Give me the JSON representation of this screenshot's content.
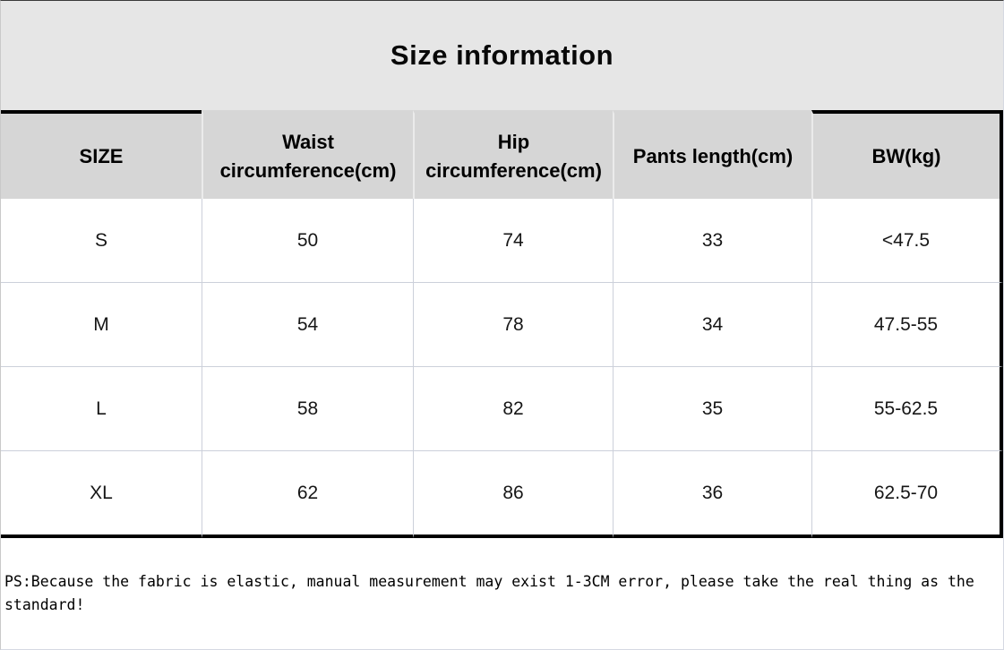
{
  "header": {
    "title": "Size information"
  },
  "table": {
    "columns": [
      {
        "label": "SIZE"
      },
      {
        "label": "Waist\ncircumference(cm)"
      },
      {
        "label": "Hip\ncircumference(cm)"
      },
      {
        "label": "Pants length(cm)"
      },
      {
        "label": "BW(kg)"
      }
    ],
    "rows": [
      {
        "size": "S",
        "waist": "50",
        "hip": "74",
        "pants_length": "33",
        "bw": "<47.5"
      },
      {
        "size": "M",
        "waist": "54",
        "hip": "78",
        "pants_length": "34",
        "bw": "47.5-55"
      },
      {
        "size": "L",
        "waist": "58",
        "hip": "82",
        "pants_length": "35",
        "bw": "55-62.5"
      },
      {
        "size": "XL",
        "waist": "62",
        "hip": "86",
        "pants_length": "36",
        "bw": "62.5-70"
      }
    ]
  },
  "footnote": {
    "text": "PS:Because the fabric is elastic, manual measurement may exist 1-3CM error, please take the real thing as the standard!"
  },
  "colors": {
    "title_band_bg": "#e6e6e6",
    "header_row_bg": "#d6d6d6",
    "thick_border": "#000000",
    "thin_grid": "#ccd0da",
    "row_bg": "#ffffff"
  }
}
